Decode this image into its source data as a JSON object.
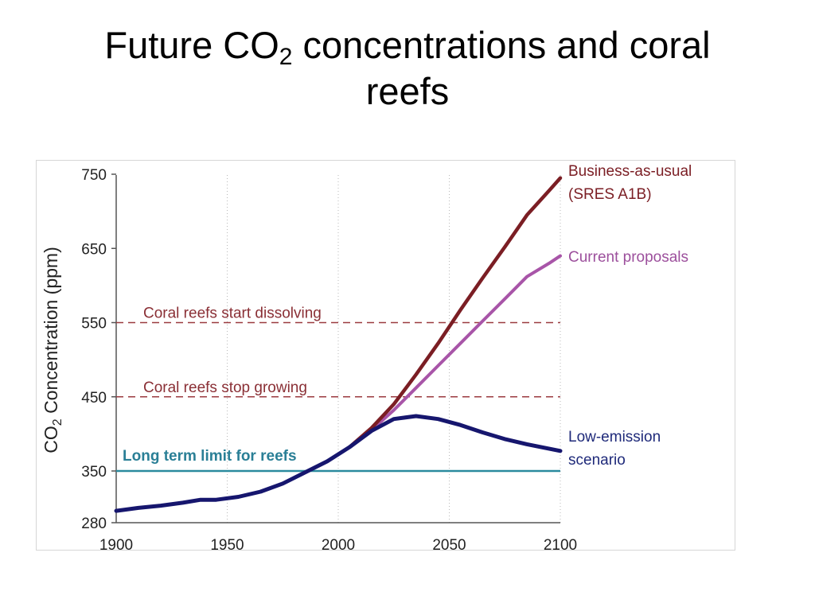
{
  "slide": {
    "title_pre": "Future CO",
    "title_sub": "2",
    "title_post": " concentrations and coral",
    "title_line2": "reefs"
  },
  "chart_data": {
    "type": "line",
    "ylabel_pre": "CO",
    "ylabel_sub": "2",
    "ylabel_post": " Concentration (ppm)",
    "xlabel": "",
    "xlim": [
      1900,
      2100
    ],
    "ylim": [
      280,
      750
    ],
    "x_ticks": [
      1900,
      1950,
      2000,
      2050,
      2100
    ],
    "y_ticks": [
      280,
      350,
      450,
      550,
      650,
      750
    ],
    "grid": "dotted-vertical",
    "colors": {
      "business": "#7b1e24",
      "current": "#a855a8",
      "low": "#16166e",
      "limit": "#2a8a9e",
      "threshold": "#9b3a3f",
      "threshold_text": "#8a2f35",
      "limit_text": "#2a7f96",
      "axis_text": "#222222"
    },
    "reference_lines": [
      {
        "key": "start_dissolving",
        "y": 550,
        "label": "Coral reefs start dissolving",
        "style": "dashed"
      },
      {
        "key": "stop_growing",
        "y": 450,
        "label": "Coral reefs stop growing",
        "style": "dashed"
      },
      {
        "key": "long_term_limit",
        "y": 350,
        "label": "Long term limit for reefs",
        "style": "solid"
      }
    ],
    "series": [
      {
        "key": "low",
        "name_lines": [
          "Low-emission",
          "scenario"
        ],
        "x": [
          1900,
          1910,
          1920,
          1930,
          1938,
          1945,
          1955,
          1965,
          1975,
          1985,
          1995,
          2005,
          2015,
          2025,
          2035,
          2045,
          2055,
          2065,
          2075,
          2085,
          2100
        ],
        "y": [
          296,
          300,
          303,
          307,
          311,
          311,
          315,
          322,
          333,
          348,
          363,
          382,
          404,
          420,
          424,
          420,
          412,
          402,
          393,
          386,
          377
        ]
      },
      {
        "key": "business",
        "name_lines": [
          "Business-as-usual",
          "(SRES A1B)"
        ],
        "x": [
          2005,
          2015,
          2025,
          2035,
          2045,
          2055,
          2065,
          2075,
          2085,
          2095,
          2100
        ],
        "y": [
          382,
          408,
          440,
          480,
          522,
          567,
          610,
          652,
          695,
          728,
          745
        ]
      },
      {
        "key": "current",
        "name_lines": [
          "Current proposals"
        ],
        "x": [
          2005,
          2015,
          2025,
          2035,
          2045,
          2055,
          2065,
          2075,
          2085,
          2095,
          2100
        ],
        "y": [
          382,
          405,
          432,
          462,
          492,
          522,
          552,
          582,
          612,
          630,
          640
        ]
      }
    ]
  }
}
